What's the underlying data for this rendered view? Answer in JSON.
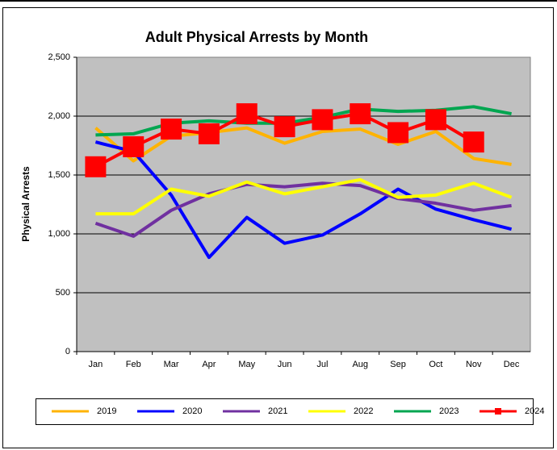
{
  "chart_data": {
    "type": "line",
    "title": "Adult Physical Arrests by Month",
    "ylabel": "Physical Arrests",
    "categories": [
      "Jan",
      "Feb",
      "Mar",
      "Apr",
      "May",
      "Jun",
      "Jul",
      "Aug",
      "Sep",
      "Oct",
      "Nov",
      "Dec"
    ],
    "ylim": [
      0,
      2500
    ],
    "yticks": [
      0,
      500,
      {
        "value": 1000,
        "label": "1,000"
      },
      {
        "value": 1500,
        "label": "1,500"
      },
      {
        "value": 2000,
        "label": "2,000"
      },
      {
        "value": 2500,
        "label": "2,500"
      }
    ],
    "grid": true,
    "legend": "bottom",
    "series": [
      {
        "name": "2019",
        "color": "#ffb300",
        "values": [
          1900,
          1620,
          1830,
          1860,
          1900,
          1770,
          1870,
          1890,
          1760,
          1870,
          1640,
          1590
        ]
      },
      {
        "name": "2020",
        "color": "#0000ff",
        "values": [
          1780,
          1700,
          1330,
          800,
          1140,
          920,
          990,
          1170,
          1380,
          1210,
          1120,
          1040
        ]
      },
      {
        "name": "2021",
        "color": "#7030a0",
        "values": [
          1090,
          980,
          1200,
          1340,
          1420,
          1400,
          1430,
          1410,
          1300,
          1260,
          1200,
          1240
        ]
      },
      {
        "name": "2022",
        "color": "#ffff00",
        "values": [
          1170,
          1170,
          1380,
          1320,
          1440,
          1340,
          1400,
          1460,
          1310,
          1330,
          1430,
          1310
        ]
      },
      {
        "name": "2023",
        "color": "#00a650",
        "values": [
          1840,
          1850,
          1940,
          1960,
          1940,
          1940,
          1990,
          2060,
          2040,
          2050,
          2080,
          2020
        ]
      },
      {
        "name": "2024",
        "color": "#ff0000",
        "marker": "square",
        "values": [
          1570,
          1740,
          1890,
          1850,
          2020,
          1910,
          1970,
          2020,
          1860,
          1970,
          1780,
          null
        ]
      }
    ]
  }
}
